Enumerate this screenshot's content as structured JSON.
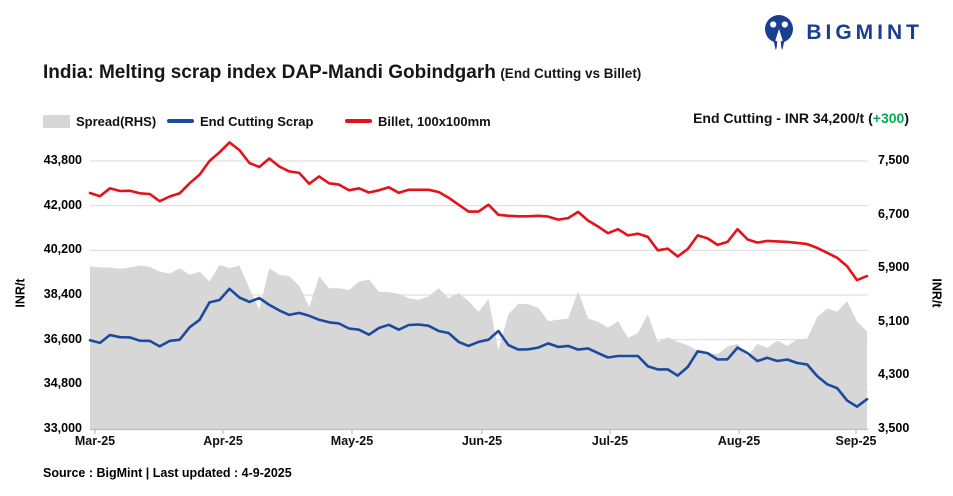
{
  "header": {
    "logo_text": "BIGMINT",
    "logo_color": "#1b3f8f",
    "title_main": "India: Melting scrap index DAP-Mandi Gobindgarh",
    "title_sub": "(End Cutting vs Billet)"
  },
  "legend": {
    "items": [
      {
        "label": "Spread(RHS)",
        "type": "area",
        "color": "#d7d7d7"
      },
      {
        "label": "End Cutting Scrap",
        "type": "line",
        "color": "#1c4a9e"
      },
      {
        "label": "Billet, 100x100mm",
        "type": "line",
        "color": "#e2131b"
      }
    ]
  },
  "annotation": {
    "prefix": "End Cutting - INR 34,200/t (",
    "change": "+300",
    "suffix": ")",
    "change_color": "#00b050"
  },
  "footer": {
    "source": "Source : BigMint | Last updated : 4-9-2025"
  },
  "chart_data": {
    "type": "line",
    "title": "India: Melting scrap index DAP-Mandi Gobindgarh (End Cutting vs Billet)",
    "grid": true,
    "legend_position": "top-left",
    "x_labels": [
      "Mar-25",
      "Apr-25",
      "May-25",
      "Jun-25",
      "Jul-25",
      "Aug-25",
      "Sep-25"
    ],
    "left_axis": {
      "label": "INR/t",
      "min": 33000,
      "max": 43800,
      "ticks": [
        "43,800",
        "42,000",
        "40,200",
        "38,400",
        "36,600",
        "34,800",
        "33,000"
      ]
    },
    "right_axis": {
      "label": "INR/t",
      "min": 3500,
      "max": 7500,
      "ticks": [
        "7,500",
        "6,700",
        "5,900",
        "5,100",
        "4,300",
        "3,500"
      ]
    },
    "grid_color": "#dadada",
    "last_values": {
      "end_cutting": "INR 34,200/t",
      "change": "+300"
    },
    "series": [
      {
        "name": "Billet, 100x100mm",
        "axis": "left",
        "color": "#e2131b",
        "width": 2.6,
        "values": [
          42510,
          42380,
          42700,
          42590,
          42600,
          42500,
          42470,
          42180,
          42370,
          42500,
          42900,
          43250,
          43800,
          44150,
          44550,
          44240,
          43720,
          43560,
          43900,
          43580,
          43380,
          43320,
          42880,
          43180,
          42900,
          42850,
          42620,
          42700,
          42530,
          42620,
          42740,
          42520,
          42640,
          42640,
          42640,
          42550,
          42320,
          42040,
          41760,
          41760,
          42040,
          41630,
          41590,
          41570,
          41570,
          41590,
          41560,
          41440,
          41500,
          41750,
          41400,
          41160,
          40890,
          41050,
          40800,
          40870,
          40740,
          40200,
          40270,
          39950,
          40250,
          40800,
          40680,
          40420,
          40540,
          41050,
          40640,
          40510,
          40580,
          40560,
          40540,
          40500,
          40450,
          40300,
          40100,
          39900,
          39560,
          39000,
          39160
        ]
      },
      {
        "name": "End Cutting Scrap",
        "axis": "left",
        "color": "#1c4a9e",
        "width": 2.6,
        "values": [
          36580,
          36470,
          36790,
          36700,
          36690,
          36560,
          36550,
          36330,
          36550,
          36600,
          37100,
          37400,
          38100,
          38200,
          38650,
          38300,
          38120,
          38280,
          38000,
          37780,
          37600,
          37680,
          37560,
          37400,
          37300,
          37250,
          37050,
          37000,
          36800,
          37070,
          37200,
          37000,
          37190,
          37210,
          37160,
          36950,
          36870,
          36510,
          36350,
          36510,
          36600,
          36950,
          36380,
          36200,
          36210,
          36280,
          36450,
          36310,
          36350,
          36200,
          36250,
          36060,
          35880,
          35940,
          35940,
          35940,
          35530,
          35400,
          35400,
          35150,
          35500,
          36130,
          36060,
          35800,
          35810,
          36280,
          36060,
          35740,
          35870,
          35740,
          35800,
          35660,
          35600,
          35130,
          34800,
          34650,
          34150,
          33900,
          34200
        ]
      },
      {
        "name": "Spread(RHS)",
        "axis": "right",
        "color": "#d7d7d7",
        "type": "area",
        "derived": "billet_minus_end_cutting"
      }
    ]
  }
}
